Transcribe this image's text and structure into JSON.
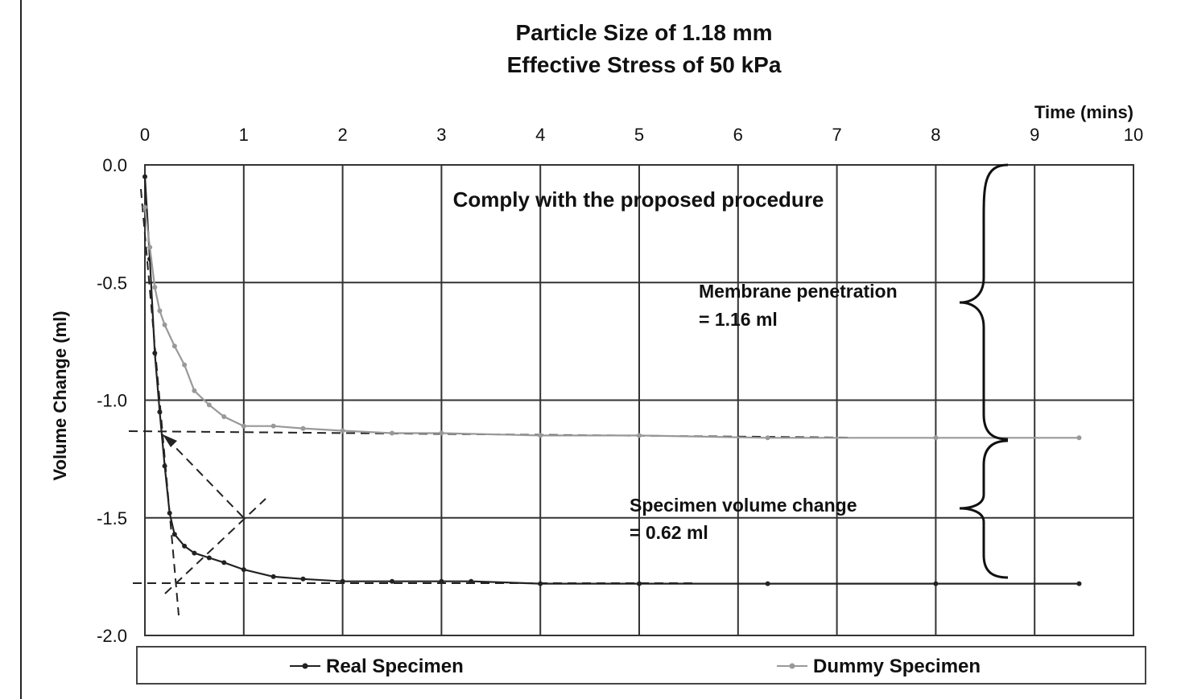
{
  "chart_data": {
    "type": "line",
    "title": "Particle Size of 1.18 mm",
    "subtitle": "Effective Stress of 50 kPa",
    "xlabel": "Time (mins)",
    "ylabel": "Volume Change (ml)",
    "xlim": [
      0,
      10
    ],
    "ylim": [
      -2.0,
      0.0
    ],
    "x_ticks": [
      "0",
      "1",
      "2",
      "3",
      "4",
      "5",
      "6",
      "7",
      "8",
      "9",
      "10"
    ],
    "y_ticks": [
      "0.0",
      "-0.5",
      "-1.0",
      "-1.5",
      "-2.0"
    ],
    "x_axis_position": "top",
    "grid": true,
    "legend_position": "bottom",
    "series": [
      {
        "name": "Real Specimen",
        "color": "#222222",
        "x": [
          0,
          0.05,
          0.1,
          0.15,
          0.2,
          0.25,
          0.3,
          0.4,
          0.5,
          0.65,
          0.8,
          1.0,
          1.3,
          1.6,
          2.0,
          2.5,
          3.0,
          3.3,
          4.0,
          5.0,
          6.3,
          8.0,
          9.45
        ],
        "y": [
          -0.05,
          -0.4,
          -0.8,
          -1.05,
          -1.28,
          -1.48,
          -1.57,
          -1.62,
          -1.65,
          -1.67,
          -1.69,
          -1.72,
          -1.75,
          -1.76,
          -1.77,
          -1.77,
          -1.77,
          -1.77,
          -1.78,
          -1.78,
          -1.78,
          -1.78,
          -1.78
        ]
      },
      {
        "name": "Dummy Specimen",
        "color": "#999999",
        "x": [
          0,
          0.05,
          0.1,
          0.15,
          0.2,
          0.3,
          0.4,
          0.5,
          0.65,
          0.8,
          1.0,
          1.3,
          1.6,
          2.0,
          2.5,
          3.0,
          4.0,
          5.0,
          6.3,
          8.0,
          9.45
        ],
        "y": [
          -0.18,
          -0.35,
          -0.52,
          -0.62,
          -0.68,
          -0.77,
          -0.85,
          -0.96,
          -1.02,
          -1.07,
          -1.11,
          -1.11,
          -1.12,
          -1.13,
          -1.14,
          -1.14,
          -1.15,
          -1.15,
          -1.16,
          -1.16,
          -1.16
        ]
      }
    ],
    "annotations": {
      "procedure": "Comply with the proposed procedure",
      "membrane_line1": "Membrane penetration",
      "membrane_line2": "= 1.16 ml",
      "specimen_line1": "Specimen volume change",
      "specimen_line2": "= 0.62 ml"
    }
  }
}
